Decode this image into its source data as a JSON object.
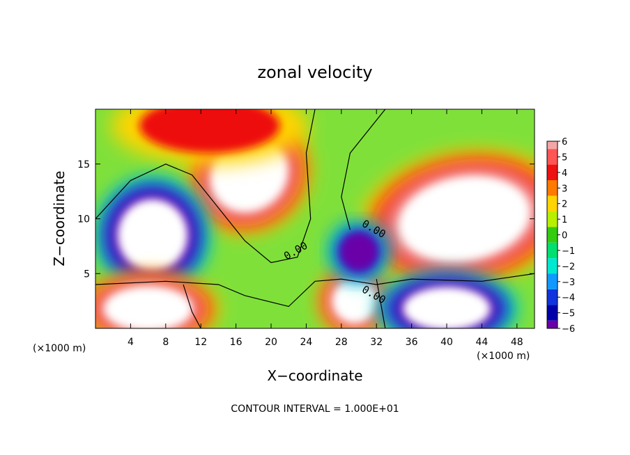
{
  "chart_data": {
    "type": "heatmap",
    "title": "zonal velocity",
    "xlabel": "X−coordinate",
    "ylabel": "Z−coordinate",
    "x_unit_left": "(×1000 m)",
    "x_unit_right": "(×1000 m)",
    "footer": "CONTOUR INTERVAL = 1.000E+01",
    "xlim": [
      0,
      50
    ],
    "ylim": [
      0,
      20
    ],
    "xticks": [
      4,
      8,
      12,
      16,
      20,
      24,
      28,
      32,
      36,
      40,
      44,
      48
    ],
    "yticks": [
      5,
      10,
      15
    ],
    "colorbar": {
      "ticks": [
        6,
        5,
        4,
        3,
        2,
        1,
        0,
        -1,
        -2,
        -3,
        -4,
        -5,
        -6
      ],
      "tick_labels": [
        "6",
        "5",
        "4",
        "3",
        "2",
        "1",
        "0",
        "−1",
        "−2",
        "−3",
        "−4",
        "−5",
        "−6"
      ],
      "colors": [
        "#f4a6a6",
        "#ff5555",
        "#ee1111",
        "#ff7a00",
        "#ffd400",
        "#b8f000",
        "#33cc11",
        "#00e070",
        "#00e8d0",
        "#1199ff",
        "#1133dd",
        "#0000aa",
        "#6a00a8"
      ]
    },
    "contour_labels": [
      "0.00",
      "0.00",
      "0.00"
    ],
    "field_regions": [
      {
        "cx": 17.5,
        "cy": 14.0,
        "rx": 4.5,
        "ry": 3.2,
        "rot": 35,
        "value": 8
      },
      {
        "cx": 13.0,
        "cy": 18.5,
        "rx": 8.0,
        "ry": 2.5,
        "rot": 0,
        "value": 4
      },
      {
        "cx": 42.0,
        "cy": 10.0,
        "rx": 7.5,
        "ry": 3.8,
        "rot": 10,
        "value": 8
      },
      {
        "cx": 6.5,
        "cy": 8.5,
        "rx": 4.0,
        "ry": 3.3,
        "rot": 0,
        "value": -8
      },
      {
        "cx": 6.0,
        "cy": 1.8,
        "rx": 5.0,
        "ry": 2.0,
        "rot": 0,
        "value": 8
      },
      {
        "cx": 29.5,
        "cy": 2.5,
        "rx": 2.5,
        "ry": 2.0,
        "rot": 0,
        "value": 8
      },
      {
        "cx": 40.0,
        "cy": 1.8,
        "rx": 5.0,
        "ry": 2.0,
        "rot": 0,
        "value": -8
      },
      {
        "cx": 30.0,
        "cy": 7.0,
        "rx": 2.2,
        "ry": 1.8,
        "rot": 0,
        "value": -6
      },
      {
        "cx": 26.0,
        "cy": 12.0,
        "rx": 4.0,
        "ry": 8.0,
        "rot": 0,
        "value": 1
      }
    ]
  }
}
